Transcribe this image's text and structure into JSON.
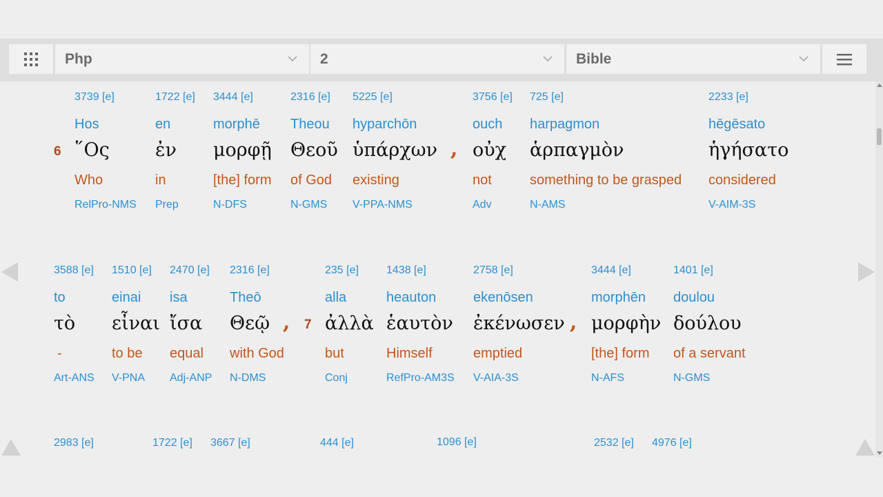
{
  "toolbar": {
    "book": "Php",
    "chapter": "2",
    "version": "Bible"
  },
  "row1": {
    "verse_number": "6",
    "words": [
      {
        "strong": "3739 [e]",
        "translit": "Hos",
        "greek": "῞Ος",
        "english": "Who",
        "parse": "RelPro-NMS"
      },
      {
        "strong": "1722 [e]",
        "translit": "en",
        "greek": "ἐν",
        "english": "in",
        "parse": "Prep"
      },
      {
        "strong": "3444 [e]",
        "translit": "morphē",
        "greek": "μορφῇ",
        "english": "[the] form",
        "parse": "N-DFS"
      },
      {
        "strong": "2316 [e]",
        "translit": "Theou",
        "greek": "Θεοῦ",
        "english": "of God",
        "parse": "N-GMS"
      },
      {
        "strong": "5225 [e]",
        "translit": "hyparchōn",
        "greek": "ὑπάρχων",
        "english": "existing",
        "parse": "V-PPA-NMS"
      },
      {
        "strong": "3756 [e]",
        "translit": "ouch",
        "greek": "οὐχ",
        "english": "not",
        "parse": "Adv"
      },
      {
        "strong": "725 [e]",
        "translit": "harpagmon",
        "greek": "ἁρπαγμὸν",
        "english": "something to be grasped",
        "parse": "N-AMS"
      },
      {
        "strong": "2233 [e]",
        "translit": "hēgēsato",
        "greek": "ἡγήσατο",
        "english": "considered",
        "parse": "V-AIM-3S"
      }
    ],
    "comma": ","
  },
  "row2": {
    "verse_number": "7",
    "words": [
      {
        "strong": "3588 [e]",
        "translit": "to",
        "greek": "τὸ",
        "english": "-",
        "parse": "Art-ANS"
      },
      {
        "strong": "1510 [e]",
        "translit": "einai",
        "greek": "εἶναι",
        "english": "to be",
        "parse": "V-PNA"
      },
      {
        "strong": "2470 [e]",
        "translit": "isa",
        "greek": "ἴσα",
        "english": "equal",
        "parse": "Adj-ANP"
      },
      {
        "strong": "2316 [e]",
        "translit": "Theō",
        "greek": "Θεῷ",
        "english": "with God",
        "parse": "N-DMS"
      },
      {
        "strong": "235 [e]",
        "translit": "alla",
        "greek": "ἀλλὰ",
        "english": "but",
        "parse": "Conj"
      },
      {
        "strong": "1438 [e]",
        "translit": "heauton",
        "greek": "ἑαυτὸν",
        "english": "Himself",
        "parse": "RefPro-AM3S"
      },
      {
        "strong": "2758 [e]",
        "translit": "ekenōsen",
        "greek": "ἐκένωσεν",
        "english": "emptied",
        "parse": "V-AIA-3S"
      },
      {
        "strong": "3444 [e]",
        "translit": "morphēn",
        "greek": "μορφὴν",
        "english": "[the] form",
        "parse": "N-AFS"
      },
      {
        "strong": "1401 [e]",
        "translit": "doulou",
        "greek": "δούλου",
        "english": "of a servant",
        "parse": "N-GMS"
      }
    ],
    "comma": ","
  },
  "row3": {
    "strongs": [
      "2983 [e]",
      "1722 [e]",
      "3667 [e]",
      "444 [e]",
      "1096 [e]",
      "2532 [e]",
      "4976 [e]"
    ]
  },
  "icons": {
    "grid": "grid-icon",
    "menu": "hamburger-menu-icon",
    "chevron": "chevron-down-icon",
    "prev": "arrow-left-icon",
    "next": "arrow-right-icon",
    "up": "arrow-up-icon"
  },
  "colors": {
    "link_blue": "#2b8fd0",
    "english_orange": "#c4561b",
    "verse_red": "#b04a1c",
    "greek_text": "#111111"
  }
}
